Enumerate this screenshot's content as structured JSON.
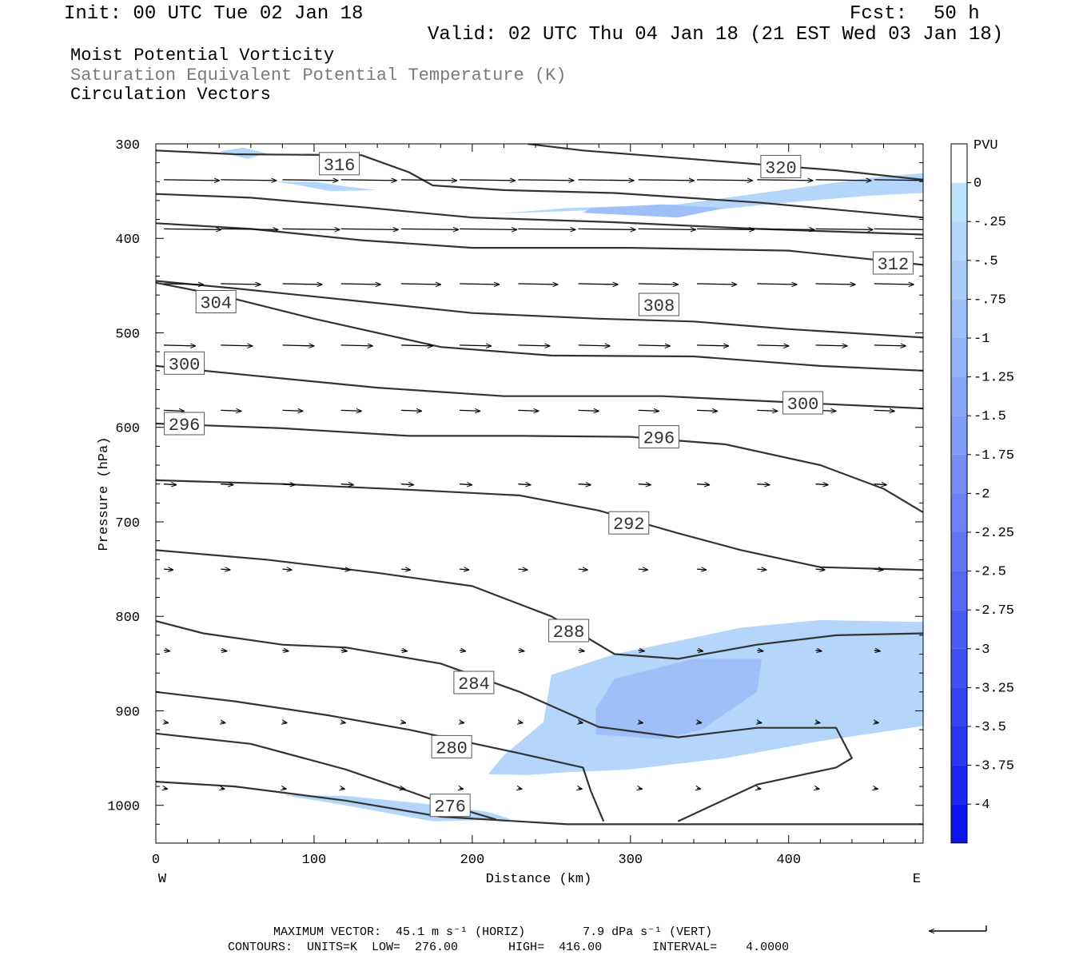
{
  "header": {
    "init": "Init: 00 UTC Tue 02 Jan 18",
    "fcst_label": "Fcst:",
    "fcst_value": "50 h",
    "valid": "Valid: 02 UTC Thu 04 Jan 18 (21 EST Wed 03 Jan 18)"
  },
  "fields": {
    "line1": "Moist Potential Vorticity",
    "line2": "Saturation Equivalent Potential Temperature (K)",
    "line3": "Circulation Vectors"
  },
  "footer": {
    "max_vector": "MAXIMUM VECTOR:  45.1 m s⁻¹ (HORIZ)        7.9 dPa s⁻¹ (VERT)",
    "contours": "CONTOURS:  UNITS=K  LOW=  276.00       HIGH=  416.00       INTERVAL=    4.0000"
  },
  "colors": {
    "contour": "#333333",
    "pv_light": "#bde3fb",
    "pv_mid": "#a9cbf9"
  },
  "chart_data": {
    "type": "cross-section",
    "xlabel": "Distance (km)",
    "ylabel": "Pressure (hPa)",
    "xlim": [
      0,
      485
    ],
    "ylim": [
      1040,
      300
    ],
    "x_ticks": [
      "0",
      "100",
      "200",
      "300",
      "400"
    ],
    "y_ticks": [
      "300",
      "400",
      "500",
      "600",
      "700",
      "800",
      "900",
      "1000"
    ],
    "x_ends": [
      "W",
      "E"
    ],
    "colorbar": {
      "unit": "PVU",
      "labels": [
        "0",
        "-.25",
        "-.5",
        "-.75",
        "-1",
        "-1.25",
        "-1.5",
        "-1.75",
        "-2",
        "-2.25",
        "-2.5",
        "-2.75",
        "-3",
        "-3.25",
        "-3.5",
        "-3.75",
        "-4"
      ],
      "colors": [
        "#ffffff",
        "#bde3fb",
        "#b3d6fa",
        "#a9cbf9",
        "#9fbff9",
        "#95b3f8",
        "#8aa6f7",
        "#809af7",
        "#768ef6",
        "#6b81f5",
        "#6175f5",
        "#5668f4",
        "#4b5cf3",
        "#4050f2",
        "#3443f1",
        "#2836f0",
        "#1b29ef",
        "#0b14ee"
      ]
    },
    "theta_contours": [
      {
        "label": "316",
        "label_at": [
          116,
          321
        ],
        "points": [
          [
            0,
            307
          ],
          [
            50,
            311
          ],
          [
            130,
            312
          ],
          [
            160,
            330
          ],
          [
            175,
            344
          ],
          [
            220,
            349
          ],
          [
            290,
            352
          ],
          [
            380,
            362
          ],
          [
            485,
            378
          ]
        ]
      },
      {
        "label": "320",
        "label_at": [
          395,
          324
        ],
        "points": [
          [
            235,
            300
          ],
          [
            270,
            307
          ],
          [
            330,
            315
          ],
          [
            430,
            328
          ],
          [
            485,
            338
          ]
        ]
      },
      {
        "label": "312",
        "label_at": [
          466,
          426
        ],
        "points": [
          [
            0,
            384
          ],
          [
            60,
            390
          ],
          [
            130,
            402
          ],
          [
            200,
            410
          ],
          [
            300,
            410
          ],
          [
            400,
            413
          ],
          [
            485,
            428
          ]
        ]
      },
      {
        "label": "",
        "label_at": null,
        "points": [
          [
            0,
            353
          ],
          [
            60,
            357
          ],
          [
            130,
            367
          ],
          [
            200,
            378
          ],
          [
            290,
            383
          ],
          [
            380,
            390
          ],
          [
            485,
            396
          ]
        ]
      },
      {
        "label": "308",
        "label_at": [
          318,
          470
        ],
        "points": [
          [
            0,
            445
          ],
          [
            50,
            453
          ],
          [
            120,
            465
          ],
          [
            200,
            479
          ],
          [
            280,
            485
          ],
          [
            340,
            488
          ],
          [
            400,
            496
          ],
          [
            485,
            505
          ]
        ]
      },
      {
        "label": "304",
        "label_at": [
          38,
          467
        ],
        "points": [
          [
            0,
            447
          ],
          [
            40,
            460
          ],
          [
            100,
            485
          ],
          [
            180,
            515
          ],
          [
            250,
            524
          ],
          [
            340,
            525
          ],
          [
            420,
            535
          ],
          [
            485,
            540
          ]
        ]
      },
      {
        "label": "300",
        "label_at": [
          18,
          532
        ],
        "points": [
          [
            0,
            535
          ],
          [
            60,
            545
          ],
          [
            140,
            558
          ],
          [
            220,
            567
          ],
          [
            320,
            567
          ],
          [
            420,
            575
          ],
          [
            485,
            580
          ]
        ]
      },
      {
        "label": "300",
        "label_at": [
          409,
          574
        ],
        "points": null
      },
      {
        "label": "296",
        "label_at": [
          18,
          596
        ],
        "points": [
          [
            0,
            596
          ],
          [
            80,
            601
          ],
          [
            160,
            609
          ],
          [
            230,
            609
          ],
          [
            300,
            610
          ],
          [
            360,
            618
          ],
          [
            420,
            640
          ],
          [
            460,
            665
          ],
          [
            485,
            690
          ]
        ]
      },
      {
        "label": "296",
        "label_at": [
          318,
          610
        ],
        "points": null
      },
      {
        "label": "292",
        "label_at": [
          299,
          701
        ],
        "points": [
          [
            0,
            656
          ],
          [
            80,
            660
          ],
          [
            160,
            666
          ],
          [
            230,
            672
          ],
          [
            280,
            688
          ],
          [
            330,
            712
          ],
          [
            370,
            730
          ],
          [
            420,
            748
          ],
          [
            485,
            751
          ]
        ]
      },
      {
        "label": "288",
        "label_at": [
          261,
          815
        ],
        "points": [
          [
            0,
            730
          ],
          [
            70,
            740
          ],
          [
            140,
            754
          ],
          [
            200,
            768
          ],
          [
            250,
            800
          ],
          [
            290,
            840
          ],
          [
            330,
            845
          ],
          [
            380,
            830
          ],
          [
            430,
            820
          ],
          [
            485,
            818
          ]
        ]
      },
      {
        "label": "284",
        "label_at": [
          201,
          870
        ],
        "points": [
          [
            0,
            805
          ],
          [
            30,
            818
          ],
          [
            80,
            830
          ],
          [
            120,
            833
          ],
          [
            180,
            850
          ],
          [
            230,
            880
          ],
          [
            280,
            917
          ],
          [
            330,
            928
          ],
          [
            380,
            918
          ],
          [
            430,
            918
          ],
          [
            440,
            950
          ],
          [
            430,
            960
          ],
          [
            380,
            978
          ],
          [
            330,
            1017
          ]
        ]
      },
      {
        "label": "280",
        "label_at": [
          187,
          938
        ],
        "points": [
          [
            0,
            880
          ],
          [
            50,
            890
          ],
          [
            110,
            905
          ],
          [
            160,
            920
          ],
          [
            230,
            945
          ],
          [
            270,
            960
          ],
          [
            275,
            985
          ],
          [
            283,
            1017
          ]
        ]
      },
      {
        "label": "276",
        "label_at": [
          186,
          1000
        ],
        "points": [
          [
            0,
            924
          ],
          [
            60,
            935
          ],
          [
            120,
            962
          ],
          [
            160,
            985
          ],
          [
            185,
            1000
          ],
          [
            215,
            1015
          ]
        ]
      },
      {
        "label": "",
        "label_at": null,
        "points": [
          [
            0,
            975
          ],
          [
            50,
            980
          ],
          [
            120,
            995
          ],
          [
            180,
            1012
          ],
          [
            260,
            1020
          ],
          [
            485,
            1020
          ]
        ]
      }
    ],
    "pv_regions": [
      {
        "level": "-.25",
        "points": [
          [
            210,
            967
          ],
          [
            235,
            968
          ],
          [
            260,
            965
          ],
          [
            300,
            962
          ],
          [
            360,
            950
          ],
          [
            420,
            932
          ],
          [
            485,
            916
          ],
          [
            485,
            806
          ],
          [
            420,
            804
          ],
          [
            370,
            812
          ],
          [
            290,
            840
          ],
          [
            250,
            862
          ],
          [
            245,
            912
          ],
          [
            220,
            947
          ]
        ]
      },
      {
        "level": "-.75",
        "points": [
          [
            278,
            925
          ],
          [
            320,
            930
          ],
          [
            345,
            920
          ],
          [
            380,
            880
          ],
          [
            383,
            845
          ],
          [
            340,
            845
          ],
          [
            290,
            866
          ],
          [
            278,
            898
          ]
        ]
      },
      {
        "level": "-.25",
        "points": [
          [
            215,
            374
          ],
          [
            280,
            370
          ],
          [
            340,
            372
          ],
          [
            400,
            362
          ],
          [
            450,
            355
          ],
          [
            485,
            352
          ],
          [
            485,
            331
          ],
          [
            450,
            336
          ],
          [
            400,
            348
          ],
          [
            330,
            364
          ],
          [
            260,
            368
          ]
        ]
      },
      {
        "level": "-.75",
        "points": [
          [
            270,
            373
          ],
          [
            330,
            378
          ],
          [
            360,
            368
          ],
          [
            320,
            364
          ],
          [
            275,
            368
          ]
        ]
      },
      {
        "level": "-.25",
        "points": [
          [
            420,
            347
          ],
          [
            485,
            352
          ],
          [
            485,
            340
          ],
          [
            455,
            343
          ]
        ]
      },
      {
        "level": "-.25",
        "points": [
          [
            75,
            340
          ],
          [
            100,
            340
          ],
          [
            120,
            345
          ],
          [
            140,
            349
          ],
          [
            110,
            350
          ],
          [
            88,
            343
          ]
        ]
      },
      {
        "level": "-.25",
        "points": [
          [
            40,
            308
          ],
          [
            55,
            304
          ],
          [
            70,
            310
          ],
          [
            58,
            316
          ]
        ]
      },
      {
        "level": "-.25",
        "points": [
          [
            80,
            989
          ],
          [
            120,
            990
          ],
          [
            180,
            1000
          ],
          [
            210,
            1007
          ],
          [
            225,
            1015
          ],
          [
            175,
            1017
          ],
          [
            120,
            1000
          ]
        ]
      }
    ],
    "vector_rows": [
      {
        "p": 338,
        "x": [
          0,
          36,
          75,
          112,
          150,
          187,
          224,
          262,
          300,
          337,
          375,
          412,
          449,
          485
        ],
        "len": 70
      },
      {
        "p": 390,
        "x": [
          0,
          36,
          75,
          112,
          150,
          187,
          224,
          262,
          300,
          337,
          375,
          412,
          449
        ],
        "len": 72
      },
      {
        "p": 448,
        "x": [
          0,
          36,
          75,
          112,
          150,
          187,
          224,
          262,
          300,
          337,
          375,
          412,
          449
        ],
        "len": 50
      },
      {
        "p": 513,
        "x": [
          0,
          36,
          75,
          112,
          150,
          187,
          224,
          262,
          300,
          337,
          375,
          412,
          449
        ],
        "len": 40
      },
      {
        "p": 582,
        "x": [
          0,
          36,
          75,
          112,
          150,
          187,
          224,
          262,
          300,
          337,
          375,
          412,
          449
        ],
        "len": 26
      },
      {
        "p": 660,
        "x": [
          0,
          36,
          75,
          112,
          150,
          187,
          224,
          262,
          300,
          337,
          375,
          412,
          449
        ],
        "len": 16
      },
      {
        "p": 750,
        "x": [
          0,
          36,
          75,
          112,
          150,
          187,
          224,
          262,
          300,
          337,
          375,
          412,
          449
        ],
        "len": 12
      },
      {
        "p": 836,
        "x": [
          0,
          36,
          75,
          112,
          150,
          187,
          224,
          262,
          300,
          337,
          375,
          412,
          449
        ],
        "len": 8
      },
      {
        "p": 912,
        "x": [
          0,
          36,
          75,
          112,
          150,
          187,
          224,
          262,
          300,
          337,
          375,
          412,
          449
        ],
        "len": 6
      },
      {
        "p": 982,
        "x": [
          0,
          36,
          75,
          112,
          150,
          187,
          224,
          262,
          300,
          337,
          375,
          412,
          449
        ],
        "len": 5
      }
    ]
  }
}
